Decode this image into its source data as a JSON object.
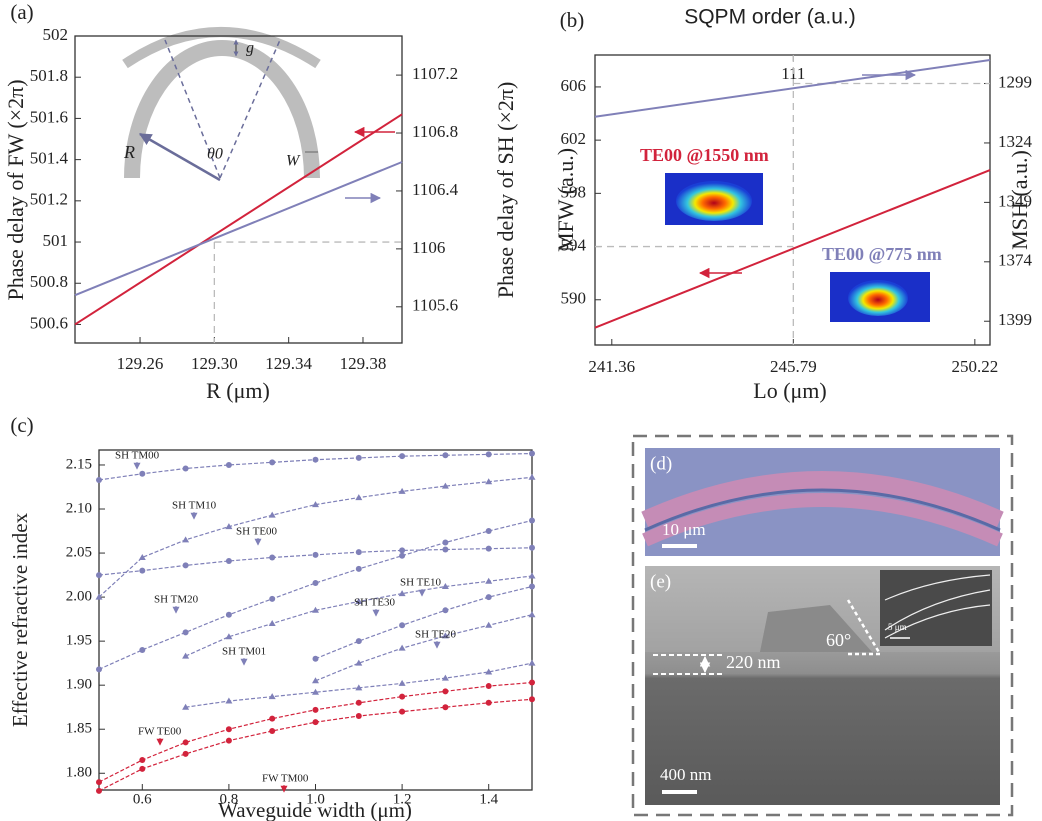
{
  "chart_data": [
    {
      "type": "line",
      "panel_label": "(a)",
      "x_label": "R (μm)",
      "y_label": "Phase delay of FW (×2π)",
      "y2_label": "Phase delay of SH (×2π)",
      "x": [
        129.225,
        129.401
      ],
      "xlim": [
        129.225,
        129.401
      ],
      "xticks": [
        129.26,
        {
          "value": 129.3,
          "label": "129.30"
        },
        129.34,
        129.38
      ],
      "ylim": [
        500.51,
        502
      ],
      "yticks": [
        500.6,
        500.8,
        501,
        501.2,
        501.4,
        501.6,
        501.8,
        502
      ],
      "y2lim": [
        1105.35,
        1107.47
      ],
      "y2ticks": [
        1105.6,
        1106,
        1106.4,
        1106.8,
        1107.2
      ],
      "series": [
        {
          "color": "#d2233c",
          "values": [
            500.6,
            501.62
          ]
        },
        {
          "color": "#8080b8",
          "values": [
            1105.68,
            1106.6
          ],
          "axis": "y2"
        }
      ],
      "guide": {
        "x": 129.3,
        "y": 501
      },
      "annotations": [
        "g",
        "R",
        "θ0",
        "W"
      ]
    },
    {
      "type": "line",
      "panel_label": "(b)",
      "title": "SQPM order (a.u.)",
      "x_label": "Lo (μm)",
      "y_label": "MFW (a.u.)",
      "y2_label": "MSH (a.u.)",
      "x": [
        240.95,
        250.59
      ],
      "xlim": [
        240.95,
        250.59
      ],
      "xticks": [
        241.36,
        245.79,
        250.22
      ],
      "x2ticks": [
        {
          "value": 245.79,
          "label": "111"
        }
      ],
      "ylim": [
        586.6,
        608.4
      ],
      "yticks": [
        590,
        594,
        598,
        602,
        606
      ],
      "y2lim": [
        1409,
        1287
      ],
      "y2ticks": [
        1299,
        1324,
        1349,
        1374,
        1399
      ],
      "series": [
        {
          "color": "#d2233c",
          "values": [
            587.9,
            599.75
          ]
        },
        {
          "color": "#8080b8",
          "values": [
            1313,
            1289.1
          ],
          "axis": "y2"
        }
      ],
      "guide": {
        "x": 245.79,
        "y": 594,
        "y2": 1299
      },
      "annotations": [
        "TE00 @1550 nm",
        "TE00 @775 nm"
      ]
    },
    {
      "type": "line",
      "panel_label": "(c)",
      "x_label": "Waveguide width (μm)",
      "y_label": "Effective refractive index",
      "x": [
        0.5,
        0.6,
        0.7,
        0.8,
        0.9,
        1,
        1.1,
        1.2,
        1.3,
        1.4,
        1.5
      ],
      "xlim": [
        0.5,
        1.5
      ],
      "xticks": [
        0.6,
        0.8,
        {
          "value": 1,
          "label": "1.0"
        },
        1.2,
        1.4
      ],
      "ylim": [
        1.781,
        2.167
      ],
      "yticks": [
        {
          "value": 1.8,
          "label": "1.80"
        },
        1.85,
        {
          "value": 1.9,
          "label": "1.90"
        },
        1.95,
        {
          "value": 2,
          "label": "2.00"
        },
        2.05,
        {
          "value": 2.1,
          "label": "2.10"
        },
        2.15
      ],
      "series": [
        {
          "name": "SH TM00",
          "color": "#7f80b8",
          "marker": "circle",
          "values": [
            2.133,
            2.14,
            2.146,
            2.15,
            2.153,
            2.156,
            2.158,
            2.16,
            2.161,
            2.162,
            2.163
          ]
        },
        {
          "name": "SH TM10",
          "color": "#7f80b8",
          "marker": "triangle",
          "values": [
            2.0,
            2.045,
            2.065,
            2.08,
            2.093,
            2.105,
            2.113,
            2.12,
            2.126,
            2.131,
            2.136
          ]
        },
        {
          "name": "SH TE00",
          "color": "#7f80b8",
          "marker": "circle",
          "values": [
            2.025,
            2.03,
            2.036,
            2.041,
            2.045,
            2.048,
            2.051,
            2.053,
            2.054,
            2.055,
            2.056
          ]
        },
        {
          "name": "SH TE10",
          "color": "#7f80b8",
          "marker": "triangle",
          "values": [
            null,
            null,
            1.933,
            1.955,
            1.97,
            1.985,
            1.995,
            2.004,
            2.012,
            2.018,
            2.024
          ]
        },
        {
          "name": "SH TM20",
          "color": "#7f80b8",
          "marker": "circle",
          "values": [
            1.918,
            1.94,
            1.96,
            1.98,
            1.998,
            2.016,
            2.032,
            2.047,
            2.062,
            2.075,
            2.087
          ]
        },
        {
          "name": "SH TE30",
          "color": "#7f80b8",
          "marker": "circle",
          "values": [
            null,
            null,
            null,
            null,
            null,
            1.93,
            1.95,
            1.968,
            1.985,
            2.0,
            2.012
          ]
        },
        {
          "name": "SH TE20",
          "color": "#7f80b8",
          "marker": "triangle",
          "values": [
            null,
            null,
            null,
            null,
            null,
            1.905,
            1.925,
            1.942,
            1.956,
            1.968,
            1.98
          ]
        },
        {
          "name": "SH TM01",
          "color": "#7f80b8",
          "marker": "triangle",
          "values": [
            null,
            null,
            1.875,
            1.882,
            1.887,
            1.892,
            1.897,
            1.902,
            1.908,
            1.915,
            1.925
          ]
        },
        {
          "name": "FW TE00",
          "color": "#d2233c",
          "marker": "circle",
          "values": [
            1.79,
            1.815,
            1.835,
            1.85,
            1.862,
            1.872,
            1.88,
            1.887,
            1.893,
            1.899,
            1.903
          ]
        },
        {
          "name": "FW TM00",
          "color": "#d2233c",
          "marker": "circle",
          "values": [
            1.78,
            1.805,
            1.822,
            1.837,
            1.848,
            1.858,
            1.865,
            1.87,
            1.875,
            1.88,
            1.884
          ]
        }
      ]
    }
  ],
  "images": {
    "d": {
      "label": "(d)",
      "scale_bar": "10 μm"
    },
    "e": {
      "label": "(e)",
      "height": "220 nm",
      "angle": "60°",
      "inset_scale_bar": "5 μm",
      "scale_bar": "400 nm"
    }
  }
}
